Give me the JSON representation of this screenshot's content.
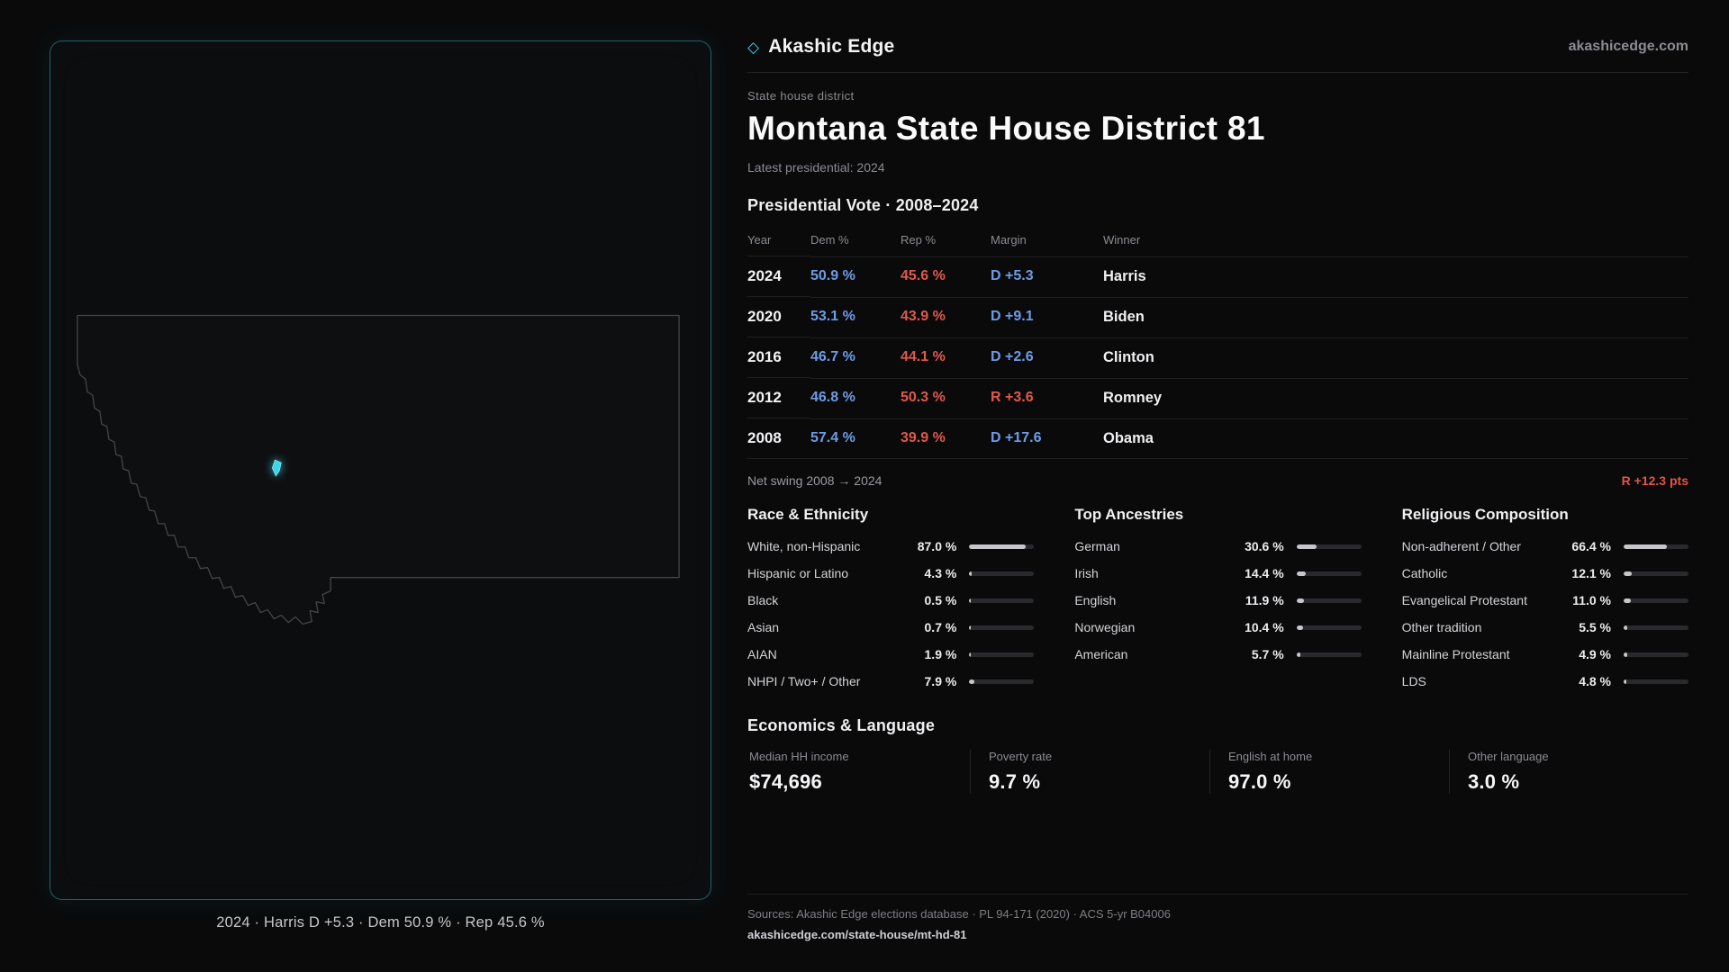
{
  "brand": {
    "icon": "◇",
    "name": "Akashic Edge",
    "site": "akashicedge.com"
  },
  "map": {
    "caption": "2024 · Harris D +5.3 · Dem 50.9 % · Rep 45.6 %"
  },
  "page": {
    "kicker": "State house district",
    "title": "Montana State House District 81",
    "latest": "Latest presidential: 2024"
  },
  "vote": {
    "heading": "Presidential Vote · 2008–2024",
    "columns": {
      "year": "Year",
      "dem": "Dem %",
      "rep": "Rep %",
      "margin": "Margin",
      "winner": "Winner"
    },
    "rows": [
      {
        "year": "2024",
        "dem": "50.9 %",
        "rep": "45.6 %",
        "margin": "D +5.3",
        "party": "D",
        "winner": "Harris"
      },
      {
        "year": "2020",
        "dem": "53.1 %",
        "rep": "43.9 %",
        "margin": "D +9.1",
        "party": "D",
        "winner": "Biden"
      },
      {
        "year": "2016",
        "dem": "46.7 %",
        "rep": "44.1 %",
        "margin": "D +2.6",
        "party": "D",
        "winner": "Clinton"
      },
      {
        "year": "2012",
        "dem": "46.8 %",
        "rep": "50.3 %",
        "margin": "R +3.6",
        "party": "R",
        "winner": "Romney"
      },
      {
        "year": "2008",
        "dem": "57.4 %",
        "rep": "39.9 %",
        "margin": "D +17.6",
        "party": "D",
        "winner": "Obama"
      }
    ]
  },
  "swing": {
    "label": "Net swing 2008 → 2024",
    "value": "R +12.3 pts"
  },
  "race": {
    "title": "Race & Ethnicity",
    "rows": [
      {
        "label": "White, non-Hispanic",
        "value": "87.0 %",
        "pct": 87.0
      },
      {
        "label": "Hispanic or Latino",
        "value": "4.3 %",
        "pct": 4.3
      },
      {
        "label": "Black",
        "value": "0.5 %",
        "pct": 0.5
      },
      {
        "label": "Asian",
        "value": "0.7 %",
        "pct": 0.7
      },
      {
        "label": "AIAN",
        "value": "1.9 %",
        "pct": 1.9
      },
      {
        "label": "NHPI / Two+ / Other",
        "value": "7.9 %",
        "pct": 7.9
      }
    ]
  },
  "ancestry": {
    "title": "Top Ancestries",
    "rows": [
      {
        "label": "German",
        "value": "30.6 %",
        "pct": 30.6
      },
      {
        "label": "Irish",
        "value": "14.4 %",
        "pct": 14.4
      },
      {
        "label": "English",
        "value": "11.9 %",
        "pct": 11.9
      },
      {
        "label": "Norwegian",
        "value": "10.4 %",
        "pct": 10.4
      },
      {
        "label": "American",
        "value": "5.7 %",
        "pct": 5.7
      }
    ]
  },
  "religion": {
    "title": "Religious Composition",
    "rows": [
      {
        "label": "Non-adherent / Other",
        "value": "66.4 %",
        "pct": 66.4
      },
      {
        "label": "Catholic",
        "value": "12.1 %",
        "pct": 12.1
      },
      {
        "label": "Evangelical Protestant",
        "value": "11.0 %",
        "pct": 11.0
      },
      {
        "label": "Other tradition",
        "value": "5.5 %",
        "pct": 5.5
      },
      {
        "label": "Mainline Protestant",
        "value": "4.9 %",
        "pct": 4.9
      },
      {
        "label": "LDS",
        "value": "4.8 %",
        "pct": 4.8
      }
    ]
  },
  "econ": {
    "heading": "Economics & Language",
    "stats": [
      {
        "label": "Median HH income",
        "value": "$74,696"
      },
      {
        "label": "Poverty rate",
        "value": "9.7 %"
      },
      {
        "label": "English at home",
        "value": "97.0 %"
      },
      {
        "label": "Other language",
        "value": "3.0 %"
      }
    ]
  },
  "footer": {
    "sources": "Sources: Akashic Edge elections database · PL 94-171 (2020) · ACS 5-yr B04006",
    "path": "akashicedge.com/state-house/mt-hd-81"
  },
  "colors": {
    "dem": "#6e9ce6",
    "rep": "#e0594b",
    "accent": "#3cd6ea",
    "bar_fill": "#c7c7cb"
  }
}
